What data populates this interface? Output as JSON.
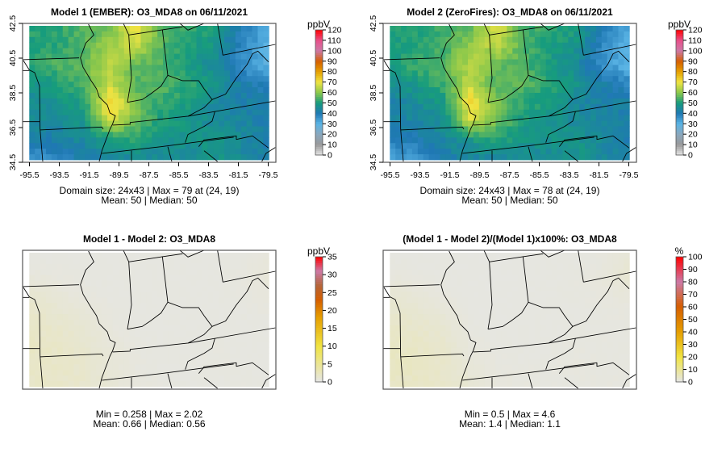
{
  "chart_data": [
    {
      "type": "heatmap",
      "title": "Model 1 (EMBER): O3_MDA8 on 06/11/2021",
      "unit": "ppbV",
      "xticks": [
        "-95.5",
        "-93.5",
        "-91.5",
        "-89.5",
        "-87.5",
        "-85.5",
        "-83.5",
        "-81.5",
        "-79.5"
      ],
      "yticks": [
        "42.5",
        "40.5",
        "38.5",
        "36.5",
        "34.5"
      ],
      "xlim": [
        -95.5,
        -79.5
      ],
      "ylim": [
        34.5,
        42.5
      ],
      "colorbar": {
        "min": 0,
        "max": 120,
        "ticks": [
          "0",
          "10",
          "20",
          "30",
          "40",
          "50",
          "60",
          "70",
          "80",
          "90",
          "100",
          "110",
          "120"
        ]
      },
      "stats_line1": "Domain size: 24x43 | Max = 79 at (24, 19)",
      "stats_line2": "Mean: 50 |  Median: 50",
      "grid_approx": [
        [
          52,
          52,
          55,
          58,
          70,
          55,
          52,
          50,
          40,
          32
        ],
        [
          50,
          52,
          55,
          62,
          66,
          55,
          50,
          48,
          38,
          30
        ],
        [
          52,
          55,
          56,
          66,
          56,
          55,
          50,
          45,
          36,
          30
        ],
        [
          48,
          50,
          55,
          66,
          55,
          56,
          52,
          48,
          42,
          38
        ],
        [
          45,
          48,
          50,
          74,
          58,
          52,
          50,
          45,
          42,
          42
        ],
        [
          45,
          45,
          48,
          68,
          58,
          50,
          48,
          45,
          44,
          42
        ],
        [
          42,
          42,
          45,
          50,
          52,
          48,
          48,
          48,
          45,
          42
        ],
        [
          36,
          38,
          42,
          45,
          45,
          45,
          45,
          48,
          45,
          42
        ]
      ]
    },
    {
      "type": "heatmap",
      "title": "Model 2 (ZeroFires): O3_MDA8 on 06/11/2021",
      "unit": "ppbV",
      "xticks": [
        "-95.5",
        "-93.5",
        "-91.5",
        "-89.5",
        "-87.5",
        "-85.5",
        "-83.5",
        "-81.5",
        "-79.5"
      ],
      "yticks": [
        "42.5",
        "40.5",
        "38.5",
        "36.5",
        "34.5"
      ],
      "xlim": [
        -95.5,
        -79.5
      ],
      "ylim": [
        34.5,
        42.5
      ],
      "colorbar": {
        "min": 0,
        "max": 120,
        "ticks": [
          "0",
          "10",
          "20",
          "30",
          "40",
          "50",
          "60",
          "70",
          "80",
          "90",
          "100",
          "110",
          "120"
        ]
      },
      "stats_line1": "Domain size: 24x43 | Max = 78 at (24, 19)",
      "stats_line2": "Mean: 50 |  Median: 50",
      "grid_approx": [
        [
          51,
          51,
          54,
          57,
          69,
          55,
          52,
          50,
          40,
          32
        ],
        [
          49,
          51,
          54,
          61,
          65,
          55,
          50,
          48,
          38,
          30
        ],
        [
          50,
          54,
          55,
          65,
          56,
          55,
          50,
          45,
          36,
          30
        ],
        [
          46,
          49,
          54,
          65,
          55,
          56,
          52,
          48,
          42,
          38
        ],
        [
          43,
          46,
          49,
          73,
          58,
          52,
          50,
          45,
          42,
          42
        ],
        [
          43,
          44,
          47,
          67,
          58,
          50,
          48,
          45,
          44,
          42
        ],
        [
          40,
          40,
          44,
          49,
          52,
          48,
          48,
          48,
          45,
          42
        ],
        [
          34,
          36,
          41,
          44,
          45,
          45,
          45,
          48,
          45,
          42
        ]
      ]
    },
    {
      "type": "heatmap",
      "title": "Model 1 - Model 2: O3_MDA8",
      "unit": "ppbV",
      "colorbar": {
        "min": 0,
        "max": 35,
        "ticks": [
          "0",
          "5",
          "10",
          "15",
          "20",
          "25",
          "30",
          "35"
        ]
      },
      "stats_line1": "Min = 0.258 | Max = 2.02",
      "stats_line2": "Mean: 0.66 |  Median: 0.56",
      "grid_approx": [
        [
          0.4,
          0.4,
          0.4,
          0.4,
          0.4,
          0.4,
          0.4,
          0.4,
          0.4,
          0.6
        ],
        [
          0.6,
          0.5,
          0.4,
          0.4,
          0.4,
          0.4,
          0.4,
          0.4,
          0.5,
          0.8
        ],
        [
          1.2,
          0.8,
          0.5,
          0.4,
          0.4,
          0.4,
          0.4,
          0.4,
          0.5,
          0.6
        ],
        [
          1.6,
          1.2,
          0.8,
          0.5,
          0.4,
          0.4,
          0.4,
          0.4,
          0.4,
          0.5
        ],
        [
          1.8,
          1.6,
          1.2,
          0.6,
          0.4,
          0.4,
          0.4,
          0.4,
          0.4,
          0.4
        ],
        [
          2.0,
          1.8,
          1.4,
          0.8,
          0.5,
          0.4,
          0.4,
          0.5,
          0.4,
          0.4
        ],
        [
          1.9,
          1.8,
          1.5,
          0.9,
          0.5,
          0.4,
          0.4,
          0.5,
          0.4,
          0.4
        ],
        [
          1.8,
          1.7,
          1.5,
          1.0,
          0.6,
          0.5,
          0.4,
          0.4,
          0.5,
          0.4
        ]
      ]
    },
    {
      "type": "heatmap",
      "title": "(Model 1 - Model 2)/(Model 1)x100%: O3_MDA8",
      "unit": "%",
      "colorbar": {
        "min": 0,
        "max": 100,
        "ticks": [
          "0",
          "10",
          "20",
          "30",
          "40",
          "50",
          "60",
          "70",
          "80",
          "90",
          "100"
        ]
      },
      "stats_line1": "Min = 0.5 | Max = 4.6",
      "stats_line2": "Mean: 1.4 |  Median: 1.1",
      "grid_approx": [
        [
          0.8,
          0.8,
          0.7,
          0.7,
          0.6,
          0.7,
          0.8,
          0.8,
          1.0,
          1.6
        ],
        [
          1.0,
          0.9,
          0.8,
          0.7,
          0.6,
          0.7,
          0.8,
          0.9,
          1.2,
          2.5
        ],
        [
          2.2,
          1.5,
          0.9,
          0.7,
          0.7,
          0.7,
          0.8,
          0.9,
          1.1,
          1.5
        ],
        [
          3.0,
          2.4,
          1.6,
          0.8,
          0.7,
          0.7,
          0.8,
          0.8,
          0.9,
          1.0
        ],
        [
          3.6,
          3.2,
          2.4,
          0.9,
          0.7,
          0.8,
          0.8,
          0.8,
          0.9,
          0.9
        ],
        [
          4.2,
          3.8,
          3.0,
          1.2,
          0.9,
          0.8,
          0.8,
          1.0,
          0.9,
          0.9
        ],
        [
          4.4,
          4.0,
          3.2,
          1.6,
          1.0,
          0.9,
          0.9,
          1.1,
          0.9,
          0.9
        ],
        [
          4.0,
          3.8,
          3.4,
          2.0,
          1.2,
          1.0,
          0.9,
          0.9,
          1.1,
          0.9
        ]
      ]
    }
  ],
  "colors": {
    "conc_scale": [
      "#e6e6e6",
      "#999999",
      "#8aa7bd",
      "#5ab4e5",
      "#1f78b4",
      "#179c7d",
      "#8cc84b",
      "#f0e442",
      "#e69f00",
      "#d55e00",
      "#cc79a7",
      "#e8508a",
      "#ff0000"
    ],
    "diff_scale": [
      "#e6e6e6",
      "#f0e442",
      "#e69f00",
      "#d55e00",
      "#b5653a",
      "#cc79a7",
      "#ff0000"
    ],
    "border": "#000000"
  }
}
